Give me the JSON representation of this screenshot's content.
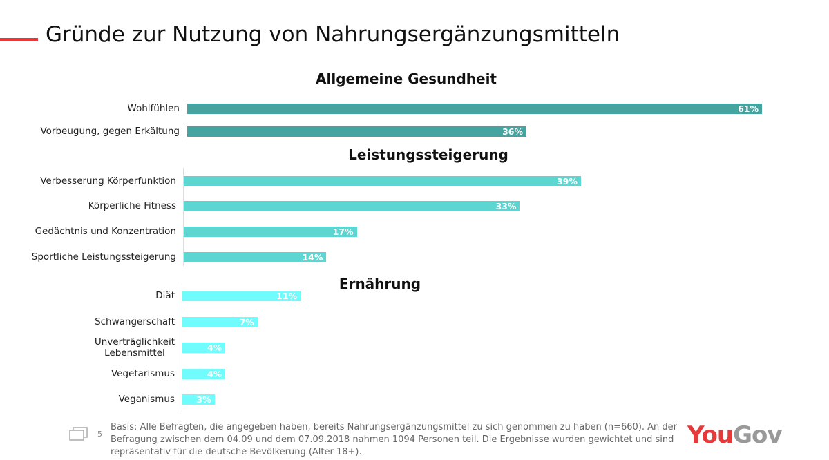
{
  "title": "Gründe zur Nutzung von Nahrungsergänzungsmitteln",
  "chart_data": {
    "type": "bar",
    "orientation": "horizontal",
    "title": "Gründe zur Nutzung von Nahrungsergänzungsmitteln",
    "unit": "%",
    "groups": [
      {
        "name": "Allgemeine Gesundheit",
        "color": "#45a3a0",
        "items": [
          {
            "label": "Wohlfühlen",
            "value": 61,
            "display": "61%"
          },
          {
            "label": "Vorbeugung, gegen Erkältung",
            "value": 36,
            "display": "36%"
          }
        ]
      },
      {
        "name": "Leistungssteigerung",
        "color": "#5dd6d1",
        "items": [
          {
            "label": "Verbesserung Körperfunktion",
            "value": 39,
            "display": "39%"
          },
          {
            "label": "Körperliche Fitness",
            "value": 33,
            "display": "33%"
          },
          {
            "label": "Gedächtnis und Konzentration",
            "value": 17,
            "display": "17%"
          },
          {
            "label": "Sportliche Leistungssteigerung",
            "value": 14,
            "display": "14%"
          }
        ]
      },
      {
        "name": "Ernährung",
        "color": "#70fcfc",
        "items": [
          {
            "label": "Diät",
            "value": 11,
            "display": "11%"
          },
          {
            "label": "Schwangerschaft",
            "value": 7,
            "display": "7%"
          },
          {
            "label": "Unverträglichkeit\nLebensmittel",
            "value": 4,
            "display": "4%"
          },
          {
            "label": "Vegetarismus",
            "value": 4,
            "display": "4%"
          },
          {
            "label": "Veganismus",
            "value": 3,
            "display": "3%"
          }
        ]
      }
    ]
  },
  "footer": {
    "page_number": "5",
    "note": "Basis: Alle Befragten, die angegeben haben, bereits Nahrungsergänzungsmittel zu sich genommen zu haben (n=660). An der Befragung zwischen dem 04.09 und dem 07.09.2018 nahmen 1094 Personen teil. Die Ergebnisse wurden gewichtet und sind repräsentativ für die deutsche Bevölkerung (Alter 18+).",
    "logo_you": "You",
    "logo_gov": "Gov"
  }
}
